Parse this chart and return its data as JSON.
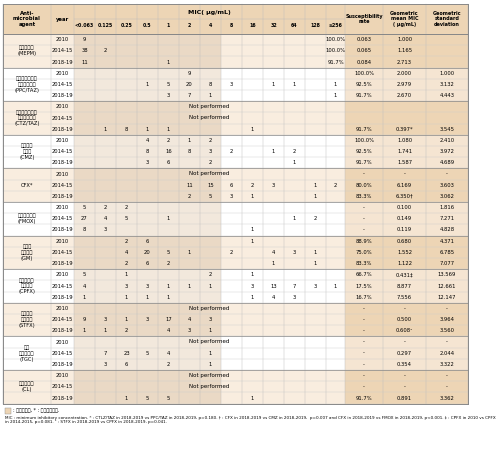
{
  "mic_cols": [
    "<0.063",
    "0.125",
    "0.25",
    "0.5",
    "1",
    "2",
    "4",
    "8",
    "16",
    "32",
    "64",
    "128",
    "≥256"
  ],
  "rows": [
    [
      "メロペネム\n(MEPM)",
      "2010",
      "9",
      "",
      "",
      "",
      "",
      "",
      "",
      "",
      "",
      "",
      "",
      "",
      "100.0%",
      "0.063",
      "1.000"
    ],
    [
      "",
      "2014-15",
      "38",
      "2",
      "",
      "",
      "",
      "",
      "",
      "",
      "",
      "",
      "",
      "",
      "100.0%",
      "0.065",
      "1.165"
    ],
    [
      "",
      "2018-19",
      "11",
      "",
      "",
      "",
      "1",
      "",
      "",
      "",
      "",
      "",
      "",
      "",
      "91.7%",
      "0.084",
      "2.713"
    ],
    [
      "ピペラシリン・\nタゾバクタム\n(PPC/TAZ)",
      "2010",
      "",
      "",
      "",
      "",
      "",
      "9",
      "",
      "",
      "",
      "",
      "",
      "",
      "",
      "100.0%",
      "2.000",
      "1.000"
    ],
    [
      "",
      "2014-15",
      "",
      "",
      "",
      "1",
      "5",
      "20",
      "8",
      "3",
      "",
      "1",
      "1",
      "",
      "1",
      "92.5%",
      "2.979",
      "3.132"
    ],
    [
      "",
      "2018-19",
      "",
      "",
      "",
      "",
      "3",
      "7",
      "1",
      "",
      "",
      "",
      "",
      "",
      "1",
      "91.7%",
      "2.670",
      "4.443"
    ],
    [
      "セフトロザン・\nタゾバクタム\n(CTZ/TAZ)",
      "2010",
      "NP",
      "",
      "",
      "",
      "",
      "",
      "",
      "",
      "",
      "",
      "",
      "",
      "",
      "",
      "",
      ""
    ],
    [
      "",
      "2014-15",
      "NP",
      "",
      "",
      "",
      "",
      "",
      "",
      "",
      "",
      "",
      "",
      "",
      "",
      "",
      "",
      ""
    ],
    [
      "",
      "2018-19",
      "",
      "1",
      "8",
      "1",
      "1",
      "",
      "",
      "",
      "1",
      "",
      "",
      "",
      "",
      "91.7%",
      "0.397*",
      "3.545"
    ],
    [
      "セフメタ\nゾール\n(CMZ)",
      "2010",
      "",
      "",
      "",
      "4",
      "2",
      "1",
      "2",
      "",
      "",
      "",
      "",
      "",
      "",
      "100.0%",
      "1.080",
      "2.410"
    ],
    [
      "",
      "2014-15",
      "",
      "",
      "",
      "8",
      "16",
      "8",
      "3",
      "2",
      "",
      "1",
      "2",
      "",
      "",
      "92.5%",
      "1.741",
      "3.972"
    ],
    [
      "",
      "2018-19",
      "",
      "",
      "",
      "3",
      "6",
      "",
      "2",
      "",
      "",
      "",
      "1",
      "",
      "",
      "91.7%",
      "1.587",
      "4.689"
    ],
    [
      "CFX*",
      "2010",
      "NP",
      "",
      "",
      "",
      "",
      "",
      "",
      "",
      "",
      "",
      "",
      "",
      "",
      "-",
      "-",
      "-"
    ],
    [
      "",
      "2014-15",
      "",
      "",
      "",
      "",
      "",
      "11",
      "15",
      "6",
      "2",
      "3",
      "",
      "1",
      "2",
      "80.0%",
      "6.169",
      "3.603"
    ],
    [
      "",
      "2018-19",
      "",
      "",
      "",
      "",
      "",
      "2",
      "5",
      "3",
      "1",
      "",
      "",
      "1",
      "",
      "83.3%",
      "6.350†",
      "3.062"
    ],
    [
      "フロモキセフ\n(FMOX)",
      "2010",
      "5",
      "2",
      "2",
      "",
      "",
      "",
      "",
      "",
      "",
      "",
      "",
      "",
      "",
      "-",
      "0.100",
      "1.816"
    ],
    [
      "",
      "2014-15",
      "27",
      "4",
      "5",
      "",
      "1",
      "",
      "",
      "",
      "",
      "",
      "1",
      "2",
      "",
      "-",
      "0.149",
      "7.271"
    ],
    [
      "",
      "2018-19",
      "8",
      "3",
      "",
      "",
      "",
      "",
      "",
      "",
      "1",
      "",
      "",
      "",
      "",
      "-",
      "0.119",
      "4.828"
    ],
    [
      "ゲンタ\nマイシン\n(GM)",
      "2010",
      "",
      "",
      "2",
      "6",
      "",
      "",
      "",
      "",
      "1",
      "",
      "",
      "",
      "",
      "88.9%",
      "0.680",
      "4.371"
    ],
    [
      "",
      "2014-15",
      "",
      "",
      "4",
      "20",
      "5",
      "1",
      "",
      "2",
      "",
      "4",
      "3",
      "1",
      "",
      "75.0%",
      "1.552",
      "6.785"
    ],
    [
      "",
      "2018-19",
      "",
      "",
      "2",
      "6",
      "2",
      "",
      "",
      "",
      "",
      "1",
      "",
      "1",
      "",
      "83.3%",
      "1.122",
      "7.077"
    ],
    [
      "シプロフロ\nキサシン\n(CPFX)",
      "2010",
      "5",
      "",
      "1",
      "",
      "",
      "",
      "2",
      "",
      "1",
      "",
      "",
      "",
      "",
      "66.7%",
      "0.431‡",
      "13.569"
    ],
    [
      "",
      "2014-15",
      "4",
      "",
      "3",
      "3",
      "1",
      "1",
      "1",
      "",
      "3",
      "13",
      "7",
      "3",
      "1",
      "17.5%",
      "8.877",
      "12.661"
    ],
    [
      "",
      "2018-19",
      "1",
      "",
      "1",
      "1",
      "1",
      "",
      "",
      "",
      "1",
      "4",
      "3",
      "",
      "",
      "16.7%",
      "7.556",
      "12.147"
    ],
    [
      "シタフロ\nキサシン\n(STFX)",
      "2010",
      "NP",
      "",
      "",
      "",
      "",
      "",
      "",
      "",
      "",
      "",
      "",
      "",
      "",
      "-",
      "-",
      "-"
    ],
    [
      "",
      "2014-15",
      "9",
      "3",
      "1",
      "3",
      "17",
      "4",
      "3",
      "",
      "",
      "",
      "",
      "",
      "",
      "-",
      "0.500",
      "3.964"
    ],
    [
      "",
      "2018-19",
      "1",
      "1",
      "2",
      "",
      "4",
      "3",
      "1",
      "",
      "",
      "",
      "",
      "",
      "",
      "-",
      "0.608¹",
      "3.560"
    ],
    [
      "チゲ\nサイクリン\n(TGC)",
      "2010",
      "NP",
      "",
      "",
      "",
      "",
      "",
      "",
      "",
      "",
      "",
      "",
      "",
      "",
      "-",
      "-",
      "-"
    ],
    [
      "",
      "2014-15",
      "",
      "7",
      "23",
      "5",
      "4",
      "",
      "1",
      "",
      "",
      "",
      "",
      "",
      "",
      "-",
      "0.297",
      "2.044"
    ],
    [
      "",
      "2018-19",
      "",
      "3",
      "6",
      "",
      "2",
      "",
      "1",
      "",
      "",
      "",
      "",
      "",
      "",
      "-",
      "0.354",
      "3.322"
    ],
    [
      "コリスチン\n(CL)",
      "2010",
      "NP",
      "",
      "",
      "",
      "",
      "",
      "",
      "",
      "",
      "",
      "",
      "",
      "",
      "-",
      "-",
      "-"
    ],
    [
      "",
      "2014-15",
      "NP",
      "",
      "",
      "",
      "",
      "",
      "",
      "",
      "",
      "",
      "",
      "",
      "",
      "-",
      "-",
      "-"
    ],
    [
      "",
      "2018-19",
      "",
      "",
      "1",
      "5",
      "5",
      "",
      "",
      "",
      "1",
      "",
      "",
      "",
      "",
      "91.7%",
      "0.891",
      "3.362"
    ]
  ],
  "drug_groups": [
    [
      0,
      3,
      "#F9EDDF"
    ],
    [
      3,
      6,
      "#FFFFFF"
    ],
    [
      6,
      9,
      "#F9EDDF"
    ],
    [
      9,
      12,
      "#FFFFFF"
    ],
    [
      12,
      15,
      "#F9EDDF"
    ],
    [
      15,
      18,
      "#FFFFFF"
    ],
    [
      18,
      21,
      "#F9EDDF"
    ],
    [
      21,
      24,
      "#FFFFFF"
    ],
    [
      24,
      27,
      "#F9EDDF"
    ],
    [
      27,
      30,
      "#FFFFFF"
    ],
    [
      30,
      33,
      "#F9EDDF"
    ]
  ],
  "header_bg": "#EDD5B5",
  "suscept_col_bg_odd": "#EDD5B5",
  "suscept_col_bg_even": "#F5E5D2",
  "mic_suscept_bg_odd": "#EAD9C5",
  "mic_suscept_bg_even": "#F2E8DC",
  "footer_legend": ": 感受性範囲, * : 国内未承認薬.",
  "footer_mic": "MIC : minimum inhibitory concentration. * : CTLZ/TAZ in 2018-2019 vs PPC/TAZ in 2018-2019, p=0.180. † : CFX in 2018-2019 vs CMZ in 2018-2019,  p=0.007 and CFX in 2018-2019 vs FMOX in 2018-2019, p<0.001. ‡ : CPFX in 2010 vs CPFX in 2014-2015, p=0.081. ¹ : STFX in 2018-2019 vs CPFX in 2018-2019, p=0.041."
}
